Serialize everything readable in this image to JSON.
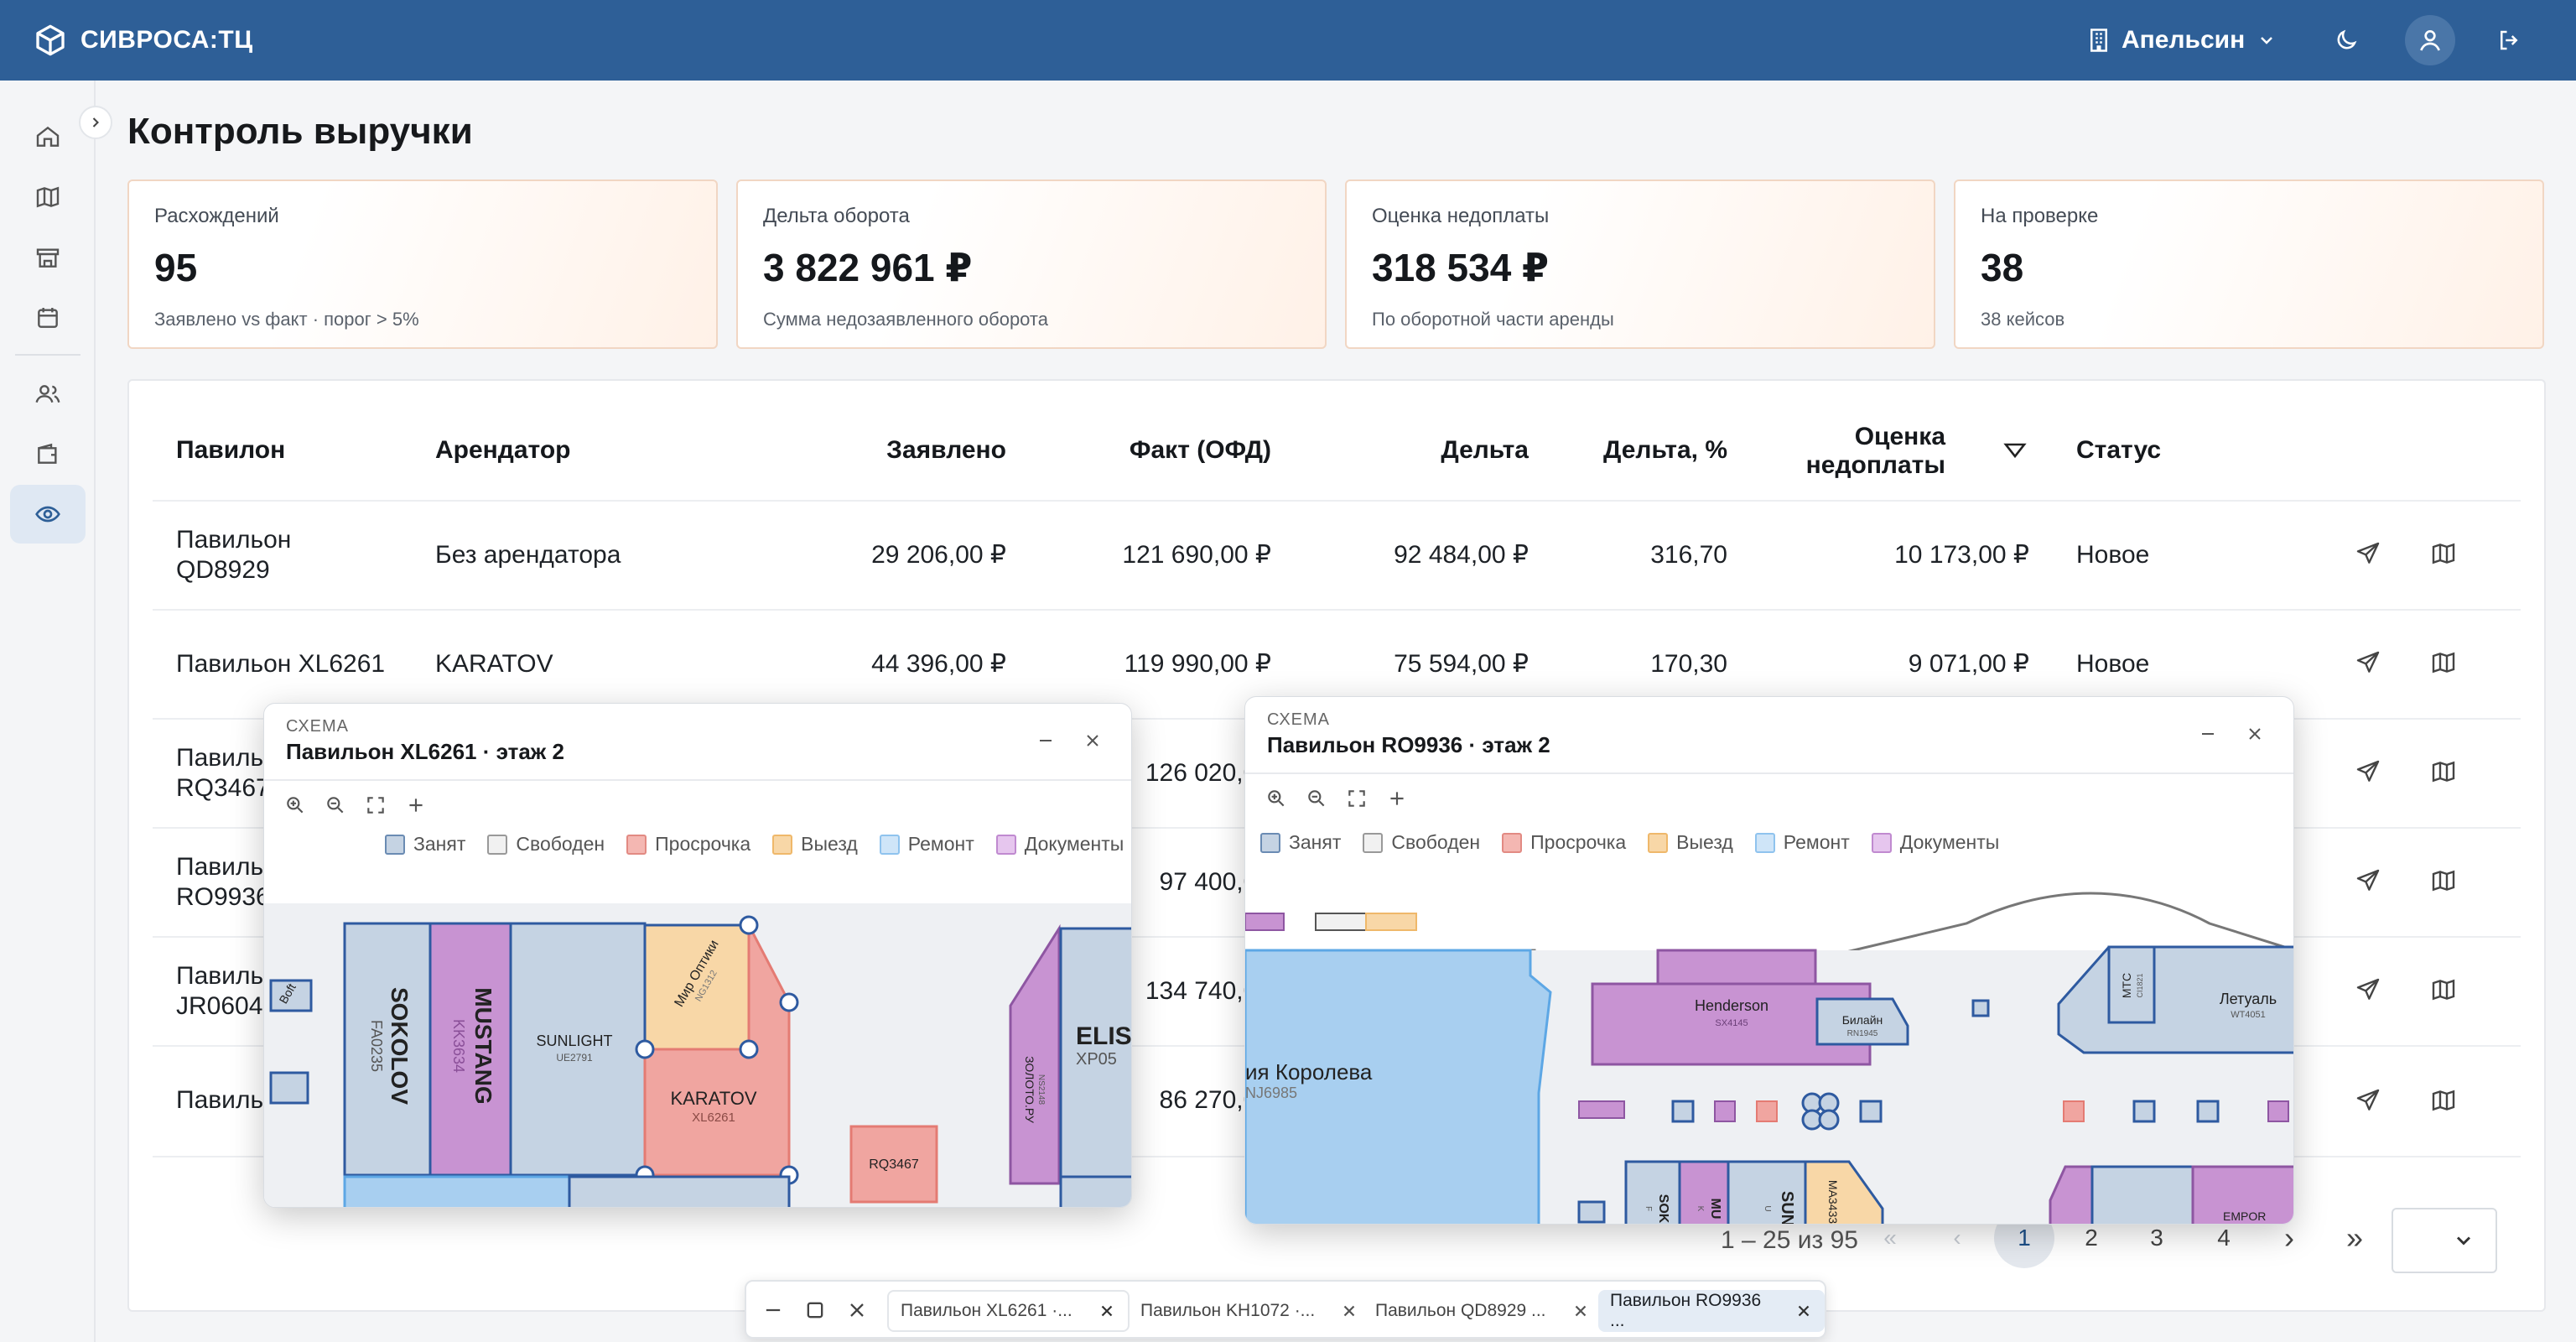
{
  "app": {
    "brand": "СИВРОСА:ТЦ",
    "org": "Апельсин"
  },
  "page": {
    "title": "Контроль выручки"
  },
  "kpis": [
    {
      "label": "Расхождений",
      "value": "95",
      "sub": "Заявлено vs факт · порог > 5%"
    },
    {
      "label": "Дельта оборота",
      "value": "3 822 961 ₽",
      "sub": "Сумма недозаявленного оборота"
    },
    {
      "label": "Оценка недоплаты",
      "value": "318 534 ₽",
      "sub": "По оборотной части аренды"
    },
    {
      "label": "На проверке",
      "value": "38",
      "sub": "38 кейсов"
    }
  ],
  "table": {
    "headers": {
      "pavilion": "Павилон",
      "tenant": "Арендатор",
      "declared": "Заявлено",
      "fact": "Факт (ОФД)",
      "delta": "Дельта",
      "delta_pct": "Дельта, %",
      "est1": "Оценка",
      "est2": "недоплаты",
      "status": "Статус"
    },
    "rows": [
      {
        "pavilion": "Павильон QD8929",
        "tenant": "Без арендатора",
        "declared": "29 206,00 ₽",
        "fact": "121 690,00 ₽",
        "delta": "92 484,00 ₽",
        "delta_pct": "316,70",
        "estimate": "10 173,00 ₽",
        "status": "Новое"
      },
      {
        "pavilion": "Павильон XL6261",
        "tenant": "KARATOV",
        "declared": "44 396,00 ₽",
        "fact": "119 990,00 ₽",
        "delta": "75 594,00 ₽",
        "delta_pct": "170,30",
        "estimate": "9 071,00 ₽",
        "status": "Новое"
      },
      {
        "pavilion": "Павильон RQ3467",
        "fact": "126 020,00"
      },
      {
        "pavilion": "Павильон RO9936",
        "fact": "97 400,00"
      },
      {
        "pavilion": "Павильон JR0604",
        "fact": "134 740,00"
      },
      {
        "pavilion": "Павильон",
        "fact": "86 270,00"
      }
    ]
  },
  "pagination": {
    "summary": "1 – 25 из 95",
    "pages": [
      "1",
      "2",
      "3",
      "4"
    ],
    "current": "1"
  },
  "windows": [
    {
      "caption": "СХЕМА",
      "title": "Павильон XL6261 · этаж 2",
      "shops": {
        "sokolov": "SOKOLOV",
        "sokolov_code": "FA0235",
        "mustang": "MUSTANG",
        "mustang_code": "KK3634",
        "sunlight": "SUNLIGHT",
        "sunlight_code": "UE2791",
        "optics": "Мир Оптики",
        "optics_code": "NG1312",
        "karatov": "KARATOV",
        "karatov_code": "XL6261",
        "rq": "RQ3467",
        "zoloto": "ЗОЛОТО.РУ",
        "zoloto_code": "NS2148",
        "elis": "ELIS",
        "elis_code": "XP05",
        "boft": "Boft"
      }
    },
    {
      "caption": "СХЕМА",
      "title": "Павильон RO9936 · этаж 2",
      "shops": {
        "henderson": "Henderson",
        "henderson_code": "SX4145",
        "beeline": "Билайн",
        "beeline_code": "RN1945",
        "mts": "МТС",
        "mts_code": "CI1821",
        "letual": "Летуаль",
        "letual_code": "WT4051",
        "koroleva": "ия Королева",
        "koroleva_code": "NJ6985",
        "sokolov": "SOK",
        "sokolov_code": "F",
        "mustang": "MU",
        "mustang_code": "K",
        "sunlight": "SUN",
        "sunlight_code": "U",
        "ma": "MA3433",
        "empor": "EMPOR"
      }
    }
  ],
  "legend": [
    "Занят",
    "Свободен",
    "Просрочка",
    "Выезд",
    "Ремонт",
    "Документы"
  ],
  "taskbar": {
    "tabs": [
      "Павильон XL6261 ·...",
      "Павильон KH1072 ·...",
      "Павильон QD8929 ...",
      "Павильон RO9936 ..."
    ]
  },
  "colors": {
    "header": "#2e5f97",
    "occupied": "#c5d3e3",
    "free": "#f1f1f1",
    "overdue": "#f0a5a0",
    "exit": "#f5c98e",
    "repair": "#a8cff0",
    "docs": "#cc99d8"
  }
}
